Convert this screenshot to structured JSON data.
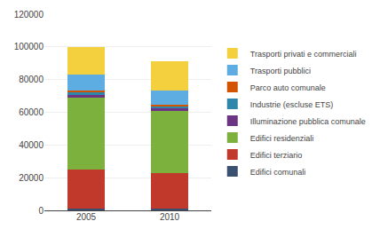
{
  "chart_data": {
    "type": "bar",
    "stacked": true,
    "categories": [
      "2005",
      "2010"
    ],
    "series": [
      {
        "name": "Edifici comunali",
        "color": "#3A5070",
        "values": [
          1200,
          1000
        ]
      },
      {
        "name": "Edifici terziario",
        "color": "#C1392B",
        "values": [
          24000,
          22000
        ]
      },
      {
        "name": "Edifici residenziali",
        "color": "#7DB13E",
        "values": [
          44000,
          38000
        ]
      },
      {
        "name": "Illuminazione pubblica comunale",
        "color": "#6C3483",
        "values": [
          1500,
          1200
        ]
      },
      {
        "name": "Industrie (escluse ETS)",
        "color": "#2E86AB",
        "values": [
          1800,
          1500
        ]
      },
      {
        "name": "Parco auto comunale",
        "color": "#D35400",
        "values": [
          800,
          700
        ]
      },
      {
        "name": "Trasporti pubblici",
        "color": "#5DADE2",
        "values": [
          10000,
          9000
        ]
      },
      {
        "name": "Trasporti privati e commerciali",
        "color": "#F4D03F",
        "values": [
          16700,
          17600
        ]
      }
    ],
    "ylim": [
      0,
      120000
    ],
    "yticks": [
      0,
      20000,
      40000,
      60000,
      80000,
      100000,
      120000
    ],
    "grid": true,
    "legend": "right"
  }
}
